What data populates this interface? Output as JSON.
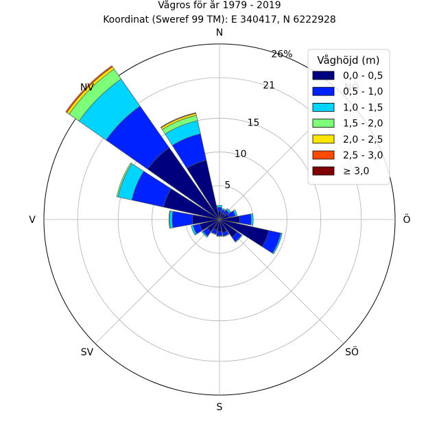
{
  "chart_data": {
    "type": "windrose",
    "title": "Vågros för år 1979 - 2019",
    "subtitle": "Koordinat (Sweref 99 TM): E 340417, N 6222928",
    "radial_max": 26,
    "radial_ticks": [
      5,
      10,
      15,
      21,
      26
    ],
    "radial_tick_labels": [
      "5",
      "10",
      "15",
      "21",
      "26%"
    ],
    "direction_labels": [
      "N",
      "NV",
      "V",
      "SV",
      "S",
      "SÖ",
      "Ö",
      "NÖ"
    ],
    "direction_angles_deg": [
      0,
      315,
      270,
      225,
      180,
      135,
      90,
      45
    ],
    "grid": true,
    "legend_title": "Våghöjd (m)",
    "legend_position": "upper-right",
    "bins": [
      {
        "label": "0,0 - 0,5",
        "color": "#00007f"
      },
      {
        "label": "0,5 - 1,0",
        "color": "#0022ff"
      },
      {
        "label": "1,0 - 1,5",
        "color": "#00d4ff"
      },
      {
        "label": "1,5 - 2,0",
        "color": "#7dff7a"
      },
      {
        "label": "2,0 - 2,5",
        "color": "#ffe600"
      },
      {
        "label": "2,5 - 3,0",
        "color": "#ff4a00"
      },
      {
        "label": "≥ 3,0",
        "color": "#7f0000"
      }
    ],
    "sectors": [
      {
        "direction_deg": 0,
        "values": [
          1.2,
          0.6,
          0.3,
          0,
          0,
          0,
          0
        ]
      },
      {
        "direction_deg": 22.5,
        "values": [
          1.0,
          0.5,
          0.2,
          0,
          0,
          0,
          0
        ]
      },
      {
        "direction_deg": 45,
        "values": [
          1.0,
          0.7,
          0.3,
          0,
          0,
          0,
          0
        ]
      },
      {
        "direction_deg": 67.5,
        "values": [
          1.4,
          1.0,
          0.3,
          0,
          0,
          0,
          0
        ]
      },
      {
        "direction_deg": 90,
        "values": [
          3.0,
          1.7,
          0.3,
          0,
          0,
          0,
          0
        ]
      },
      {
        "direction_deg": 112.5,
        "values": [
          7.5,
          1.8,
          0.2,
          0,
          0,
          0,
          0
        ]
      },
      {
        "direction_deg": 135,
        "values": [
          3.2,
          0.8,
          0.1,
          0,
          0,
          0,
          0
        ]
      },
      {
        "direction_deg": 157.5,
        "values": [
          2.0,
          0.5,
          0.1,
          0,
          0,
          0,
          0
        ]
      },
      {
        "direction_deg": 180,
        "values": [
          1.8,
          0.6,
          0.1,
          0,
          0,
          0,
          0
        ]
      },
      {
        "direction_deg": 202.5,
        "values": [
          1.6,
          0.6,
          0.1,
          0,
          0,
          0,
          0
        ]
      },
      {
        "direction_deg": 225,
        "values": [
          2.2,
          0.8,
          0.2,
          0,
          0,
          0,
          0
        ]
      },
      {
        "direction_deg": 247.5,
        "values": [
          3.0,
          1.0,
          0.3,
          0,
          0,
          0,
          0
        ]
      },
      {
        "direction_deg": 270,
        "values": [
          4.0,
          3.0,
          0.4,
          0.1,
          0,
          0,
          0
        ]
      },
      {
        "direction_deg": 292.5,
        "values": [
          8.5,
          4.8,
          2.1,
          0.2,
          0,
          0,
          0
        ]
      },
      {
        "direction_deg": 315,
        "values": [
          13.0,
          7.5,
          4.9,
          1.8,
          0.4,
          0.2,
          0
        ]
      },
      {
        "direction_deg": 337.5,
        "values": [
          9.0,
          4.0,
          2.0,
          0.8,
          0.3,
          0.1,
          0
        ]
      }
    ]
  }
}
